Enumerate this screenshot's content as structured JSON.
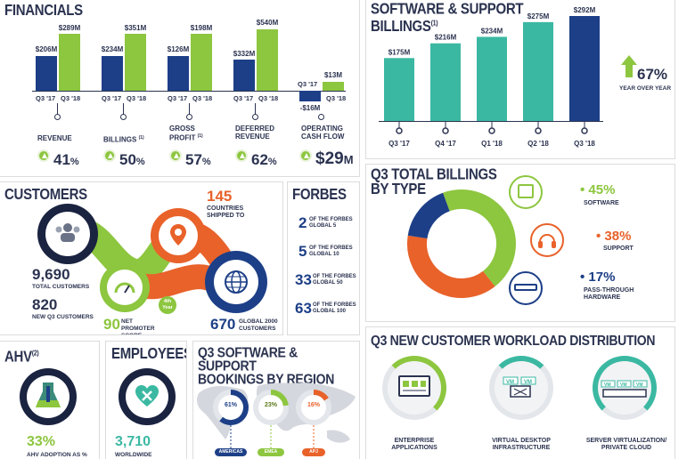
{
  "colors": {
    "navy": "#1d3f87",
    "green": "#8dc63f",
    "teal": "#3bb8a2",
    "orange": "#e8622a",
    "text": "#2b3350"
  },
  "financials": {
    "title": "FINANCIALS",
    "groups": [
      {
        "q17_value": "$206M",
        "q18_value": "$289M",
        "q17_label": "Q3 '17",
        "q18_label": "Q3 '18",
        "metric": "REVENUE",
        "sup": "",
        "pct": "41",
        "pct_unit": "%"
      },
      {
        "q17_value": "$234M",
        "q18_value": "$351M",
        "q17_label": "Q3 '17",
        "q18_label": "Q3 '18",
        "metric": "BILLINGS",
        "sup": "(1)",
        "pct": "50",
        "pct_unit": "%"
      },
      {
        "q17_value": "$126M",
        "q18_value": "$198M",
        "q17_label": "Q3 '17",
        "q18_label": "Q3 '18",
        "metric": "GROSS PROFIT",
        "sup": "(1)",
        "pct": "57",
        "pct_unit": "%"
      },
      {
        "q17_value": "$332M",
        "q18_value": "$540M",
        "q17_label": "Q3 '17",
        "q18_label": "Q3 '18",
        "metric": "DEFERRED REVENUE",
        "sup": "",
        "pct": "62",
        "pct_unit": "%"
      },
      {
        "q17_value": "-$16M",
        "q18_value": "$13M",
        "q17_label": "Q3 '17",
        "q18_label": "Q3 '18",
        "metric": "OPERATING CASH FLOW",
        "sup": "",
        "pct": "$29",
        "pct_unit": "M"
      }
    ]
  },
  "billings": {
    "title_line1": "SOFTWARE & SUPPORT",
    "title_line2": "BILLINGS",
    "title_sup": "(1)",
    "bars": [
      {
        "label": "Q3 '17",
        "value": 175,
        "text": "$175M"
      },
      {
        "label": "Q4 '17",
        "value": 216,
        "text": "$216M"
      },
      {
        "label": "Q1 '18",
        "value": 234,
        "text": "$234M"
      },
      {
        "label": "Q2 '18",
        "value": 275,
        "text": "$275M"
      },
      {
        "label": "Q3 '18",
        "value": 292,
        "text": "$292M"
      }
    ],
    "growth_pct": "67%",
    "growth_label": "YEAR OVER YEAR"
  },
  "customers": {
    "title": "CUSTOMERS",
    "countries_value": "145",
    "countries_label": "COUNTRIES SHIPPED TO",
    "total_value": "9,690",
    "total_label": "TOTAL CUSTOMERS",
    "new_value": "820",
    "new_label": "NEW Q3 CUSTOMERS",
    "nps_value": "90",
    "nps_label": "NET PROMOTER SCORE",
    "badge_line1": "4th",
    "badge_line2": "Year",
    "global_value": "670",
    "global_label": "GLOBAL 2000 CUSTOMERS"
  },
  "forbes": {
    "title": "FORBES",
    "rows": [
      {
        "value": "2",
        "label": "OF THE FORBES GLOBAL 5"
      },
      {
        "value": "5",
        "label": "OF THE FORBES GLOBAL 10"
      },
      {
        "value": "33",
        "label": "OF THE FORBES GLOBAL 50"
      },
      {
        "value": "63",
        "label": "OF THE FORBES GLOBAL 100"
      }
    ]
  },
  "billing_type": {
    "title_line1": "Q3 TOTAL BILLINGS",
    "title_line2": "BY TYPE",
    "items": [
      {
        "pct": "45%",
        "label": "SOFTWARE",
        "value": 45
      },
      {
        "pct": "38%",
        "label": "SUPPORT",
        "value": 38
      },
      {
        "pct": "17%",
        "label": "PASS-THROUGH HARDWARE",
        "value": 17
      }
    ]
  },
  "ahv": {
    "title": "AHV",
    "title_sup": "(2)",
    "pct": "33%",
    "label": "AHV ADOPTION AS %"
  },
  "employees": {
    "title": "EMPLOYEES",
    "value": "3,710",
    "label": "WORLDWIDE EMPLOYEES"
  },
  "region": {
    "title_line1": "Q3 SOFTWARE & SUPPORT",
    "title_line2": "BOOKINGS BY REGION",
    "items": [
      {
        "pct": "61%",
        "label": "AMERICAS",
        "value": 61
      },
      {
        "pct": "23%",
        "label": "EMEA",
        "value": 23
      },
      {
        "pct": "16%",
        "label": "APJ",
        "value": 16
      }
    ]
  },
  "workload": {
    "title": "Q3 NEW CUSTOMER WORKLOAD DISTRIBUTION",
    "vm_label": "VM",
    "items": [
      {
        "label_line1": "ENTERPRISE",
        "label_line2": "APPLICATIONS"
      },
      {
        "label_line1": "VIRTUAL DESKTOP",
        "label_line2": "INFRASTRUCTURE"
      },
      {
        "label_line1": "SERVER VIRTUALIZATION/",
        "label_line2": "PRIVATE CLOUD"
      }
    ]
  }
}
